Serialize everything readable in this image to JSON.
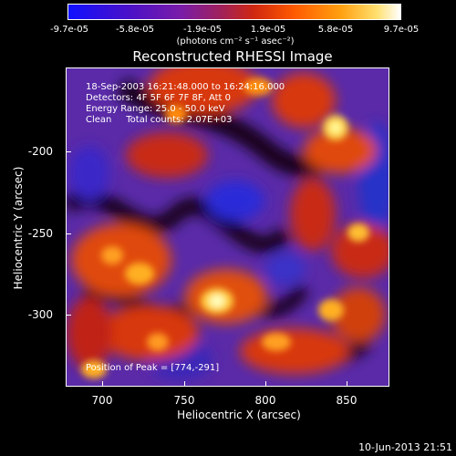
{
  "colorbar": {
    "ticks": [
      "-9.7e-05",
      "-5.8e-05",
      "-1.9e-05",
      "1.9e-05",
      "5.8e-05",
      "9.7e-05"
    ],
    "units": "(photons cm⁻² s⁻¹ asec⁻²)"
  },
  "title": "Reconstructed RHESSI Image",
  "info": {
    "line1": "18-Sep-2003 16:21:48.000 to 16:24:16.000",
    "line2": "Detectors: 4F 5F 6F 7F 8F, Att 0",
    "line3": "Energy Range: 25.0 - 50.0 keV",
    "line4": "Clean     Total counts: 2.07E+03"
  },
  "peak": "Position of Peak = [774,-291]",
  "xaxis": {
    "label": "Heliocentric X (arcsec)",
    "ticks": [
      "700",
      "750",
      "800",
      "850"
    ]
  },
  "yaxis": {
    "label": "Heliocentric Y (arcsec)",
    "ticks": [
      "-200",
      "-250",
      "-300"
    ]
  },
  "timestamp": "10-Jun-2013 21:51"
}
